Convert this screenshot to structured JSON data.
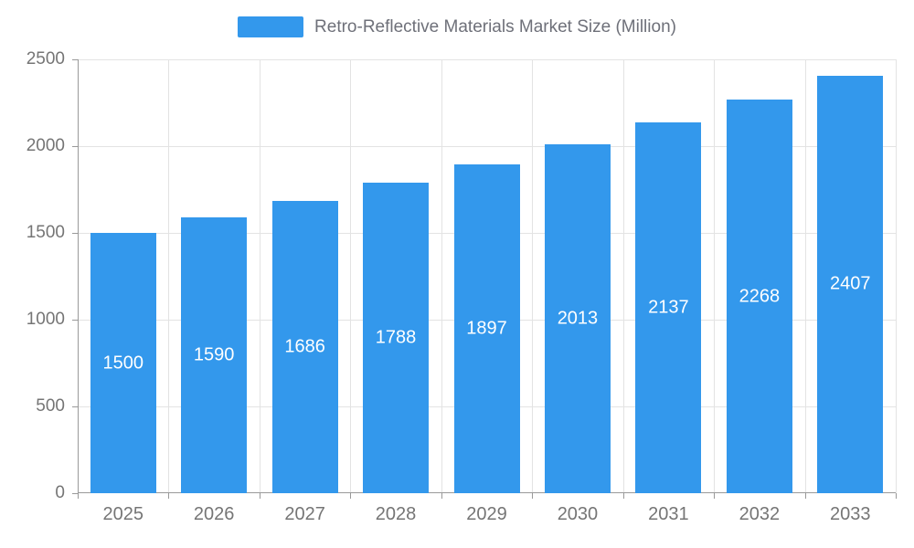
{
  "chart_data": {
    "type": "bar",
    "title": "Retro-Reflective Materials Market Size (Million)",
    "categories": [
      "2025",
      "2026",
      "2027",
      "2028",
      "2029",
      "2030",
      "2031",
      "2032",
      "2033"
    ],
    "values": [
      1500,
      1590,
      1686,
      1788,
      1897,
      2013,
      2137,
      2268,
      2407
    ],
    "xlabel": "",
    "ylabel": "",
    "ylim": [
      0,
      2500
    ],
    "ytick_step": 500,
    "yticks": [
      0,
      500,
      1000,
      1500,
      2000,
      2500
    ],
    "grid": true,
    "legend_position": "top",
    "bar_label_position": "inside-center",
    "colors": {
      "bar": "#3398ec",
      "bar_value_label": "#ffffff",
      "axis_text": "#757575",
      "legend_text": "#6e7079",
      "gridline": "#e3e3e3",
      "axis_line": "#999999"
    }
  },
  "legend": {
    "label": "Retro-Reflective Materials Market Size (Million)"
  }
}
